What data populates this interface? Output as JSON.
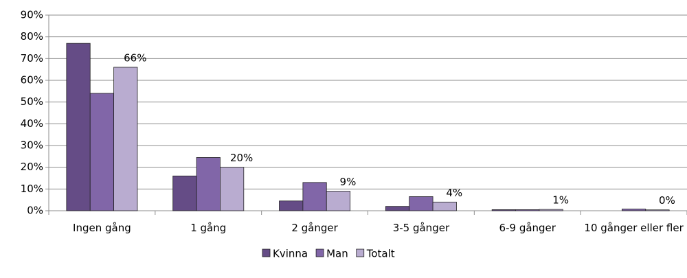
{
  "chart_data": {
    "type": "bar",
    "categories": [
      "Ingen gång",
      "1 gång",
      "2 gånger",
      "3-5 gånger",
      "6-9 gånger",
      "10 gånger eller fler"
    ],
    "series": [
      {
        "name": "Kvinna",
        "color": "#654c86",
        "values": [
          77,
          16,
          4.5,
          2,
          0.5,
          0
        ]
      },
      {
        "name": "Man",
        "color": "#8166a8",
        "values": [
          54,
          24.5,
          13,
          6.5,
          0.5,
          0.8
        ]
      },
      {
        "name": "Totalt",
        "color": "#b9acd0",
        "values": [
          66,
          20,
          9,
          4,
          0.6,
          0.4
        ],
        "value_labels": [
          "66%",
          "20%",
          "9%",
          "4%",
          "1%",
          "0%"
        ]
      }
    ],
    "ylim": [
      0,
      90
    ],
    "yticks": [
      {
        "value": 0,
        "label": "0%"
      },
      {
        "value": 10,
        "label": "10%"
      },
      {
        "value": 20,
        "label": "20%"
      },
      {
        "value": 30,
        "label": "30%"
      },
      {
        "value": 40,
        "label": "40%"
      },
      {
        "value": 50,
        "label": "50%"
      },
      {
        "value": 60,
        "label": "60%"
      },
      {
        "value": 70,
        "label": "70%"
      },
      {
        "value": 80,
        "label": "80%"
      },
      {
        "value": 90,
        "label": "90%"
      }
    ],
    "grid": true,
    "legend": "bottom"
  }
}
